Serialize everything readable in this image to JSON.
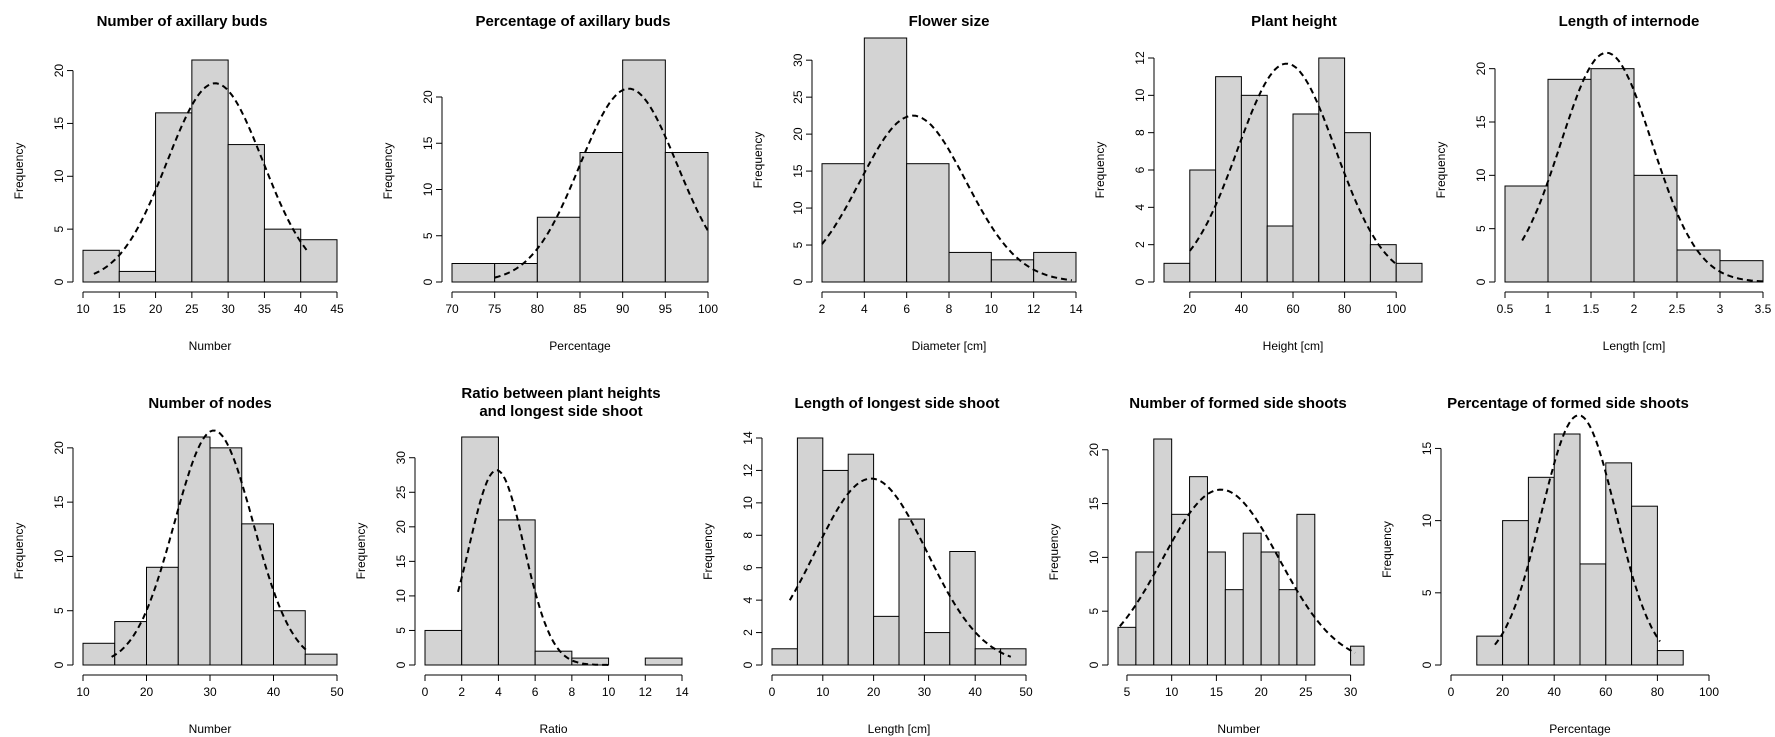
{
  "chart_data": [
    {
      "type": "bar",
      "title": [
        "Number of axillary buds"
      ],
      "xlabel": "Number",
      "ylabel": "Frequency",
      "xlim": [
        10,
        45
      ],
      "ylim": [
        0,
        21
      ],
      "xticks": [
        10,
        15,
        20,
        25,
        30,
        35,
        40,
        45
      ],
      "yticks": [
        0,
        5,
        10,
        15,
        20
      ],
      "breaks": [
        10,
        15,
        20,
        25,
        30,
        35,
        40,
        45
      ],
      "values": [
        3,
        1,
        16,
        21,
        13,
        5,
        4
      ],
      "density_curve": {
        "mean": 28.2,
        "peak": 18.8,
        "sd": 6.6,
        "from": 11.5,
        "to": 40.8
      }
    },
    {
      "type": "bar",
      "title": [
        "Percentage of axillary buds"
      ],
      "xlabel": "Percentage",
      "ylabel": "Frequency",
      "xlim": [
        70,
        100
      ],
      "ylim": [
        0,
        24
      ],
      "xticks": [
        70,
        75,
        80,
        85,
        90,
        95,
        100
      ],
      "yticks": [
        0,
        5,
        10,
        15,
        20
      ],
      "breaks": [
        70,
        75,
        80,
        85,
        90,
        95,
        100
      ],
      "values": [
        2,
        2,
        7,
        14,
        24,
        14
      ],
      "density_curve": {
        "mean": 90.7,
        "peak": 20.9,
        "sd": 5.7,
        "from": 75,
        "to": 100
      }
    },
    {
      "type": "bar",
      "title": [
        "Flower size"
      ],
      "xlabel": "Diameter [cm]",
      "ylabel": "Frequency",
      "xlim": [
        2,
        14
      ],
      "ylim": [
        0,
        33
      ],
      "xticks": [
        2,
        4,
        6,
        8,
        10,
        12,
        14
      ],
      "yticks": [
        0,
        5,
        10,
        15,
        20,
        25,
        30
      ],
      "breaks": [
        2,
        4,
        6,
        8,
        10,
        12,
        14
      ],
      "values": [
        16,
        33,
        16,
        4,
        3,
        4
      ],
      "density_curve": {
        "mean": 6.3,
        "peak": 22.5,
        "sd": 2.5,
        "from": 2,
        "to": 13.8
      }
    },
    {
      "type": "bar",
      "title": [
        "Plant height"
      ],
      "xlabel": "Height [cm]",
      "ylabel": "Frequency",
      "xlim": [
        10,
        110
      ],
      "ylim": [
        0,
        12
      ],
      "xticks": [
        20,
        40,
        60,
        80,
        100
      ],
      "yticks": [
        0,
        2,
        4,
        6,
        8,
        10,
        12
      ],
      "breaks": [
        10,
        20,
        30,
        40,
        50,
        60,
        70,
        80,
        90,
        100,
        110
      ],
      "values": [
        1,
        6,
        11,
        10,
        3,
        9,
        12,
        8,
        2,
        1
      ],
      "density_curve": {
        "mean": 57.5,
        "peak": 11.7,
        "sd": 19,
        "from": 20,
        "to": 100
      }
    },
    {
      "type": "bar",
      "title": [
        "Length of internode"
      ],
      "xlabel": "Length [cm]",
      "ylabel": "Frequency",
      "xlim": [
        0.5,
        3.5
      ],
      "ylim": [
        0,
        21
      ],
      "xticks": [
        0.5,
        1.0,
        1.5,
        2.0,
        2.5,
        3.0,
        3.5
      ],
      "yticks": [
        0,
        5,
        10,
        15,
        20
      ],
      "breaks": [
        0.5,
        1.0,
        1.5,
        2.0,
        2.5,
        3.0,
        3.5
      ],
      "values": [
        9,
        19,
        20,
        10,
        3,
        2
      ],
      "density_curve": {
        "mean": 1.68,
        "peak": 21.5,
        "sd": 0.53,
        "from": 0.7,
        "to": 3.5
      }
    },
    {
      "type": "bar",
      "title": [
        "Number of nodes"
      ],
      "xlabel": "Number",
      "ylabel": "Frequency",
      "xlim": [
        10,
        50
      ],
      "ylim": [
        0,
        21
      ],
      "xticks": [
        10,
        20,
        30,
        40,
        50
      ],
      "yticks": [
        0,
        5,
        10,
        15,
        20
      ],
      "breaks": [
        10,
        15,
        20,
        25,
        30,
        35,
        40,
        45,
        50
      ],
      "values": [
        2,
        4,
        9,
        21,
        20,
        13,
        5,
        1
      ],
      "density_curve": {
        "mean": 30.6,
        "peak": 21.6,
        "sd": 6.2,
        "from": 14.5,
        "to": 45.5
      }
    },
    {
      "type": "bar",
      "title": [
        "Ratio between plant heights",
        "and longest side shoot"
      ],
      "xlabel": "Ratio",
      "ylabel": "Frequency",
      "xlim": [
        0,
        14
      ],
      "ylim": [
        0,
        33
      ],
      "xticks": [
        0,
        2,
        4,
        6,
        8,
        10,
        12,
        14
      ],
      "yticks": [
        0,
        5,
        10,
        15,
        20,
        25,
        30
      ],
      "breaks": [
        0,
        2,
        4,
        6,
        8,
        10,
        12,
        14
      ],
      "values": [
        5,
        33,
        21,
        2,
        1,
        0,
        1
      ],
      "density_curve": {
        "mean": 3.9,
        "peak": 28.2,
        "sd": 1.5,
        "from": 1.8,
        "to": 10
      }
    },
    {
      "type": "bar",
      "title": [
        "Length of longest side shoot"
      ],
      "xlabel": "Length [cm]",
      "ylabel": "Frequency",
      "xlim": [
        0,
        50
      ],
      "ylim": [
        0,
        14
      ],
      "xticks": [
        0,
        10,
        20,
        30,
        40,
        50
      ],
      "yticks": [
        0,
        2,
        4,
        6,
        8,
        10,
        12,
        14
      ],
      "breaks": [
        0,
        5,
        10,
        15,
        20,
        25,
        30,
        35,
        40,
        45,
        50
      ],
      "values": [
        1,
        14,
        12,
        13,
        3,
        9,
        2,
        7,
        1,
        1
      ],
      "density_curve": {
        "mean": 19.5,
        "peak": 11.5,
        "sd": 11,
        "from": 3.5,
        "to": 47
      }
    },
    {
      "type": "bar",
      "title": [
        "Number of formed side shoots"
      ],
      "xlabel": "Number",
      "ylabel": "Frequency",
      "xlim": [
        4,
        31.5
      ],
      "ylim": [
        0,
        21
      ],
      "xticks": [
        5,
        10,
        15,
        20,
        25,
        30
      ],
      "yticks": [
        0,
        5,
        10,
        15,
        20
      ],
      "breaks": [
        4,
        6,
        8,
        10,
        12,
        14,
        16,
        18,
        20,
        22,
        24,
        26,
        30,
        31.5
      ],
      "values": [
        3.5,
        10.5,
        21,
        14,
        17.5,
        10.5,
        7,
        12.25,
        10.5,
        7,
        14,
        0,
        1.75
      ],
      "density_curve": {
        "mean": 15.5,
        "peak": 16.3,
        "sd": 6.5,
        "from": 4.2,
        "to": 30.5
      }
    },
    {
      "type": "bar",
      "title": [
        "Percentage of formed side shoots"
      ],
      "xlabel": "Percentage",
      "ylabel": "Frequency",
      "xlim": [
        0,
        100
      ],
      "ylim": [
        0,
        16
      ],
      "xticks": [
        0,
        20,
        40,
        60,
        80,
        100
      ],
      "yticks": [
        0,
        5,
        10,
        15
      ],
      "breaks": [
        10,
        20,
        30,
        40,
        50,
        60,
        70,
        80,
        90
      ],
      "values": [
        2,
        10,
        13,
        16,
        7,
        14,
        11,
        1
      ],
      "density_curve": {
        "mean": 49.5,
        "peak": 17.3,
        "sd": 14.5,
        "from": 17,
        "to": 81
      }
    }
  ]
}
